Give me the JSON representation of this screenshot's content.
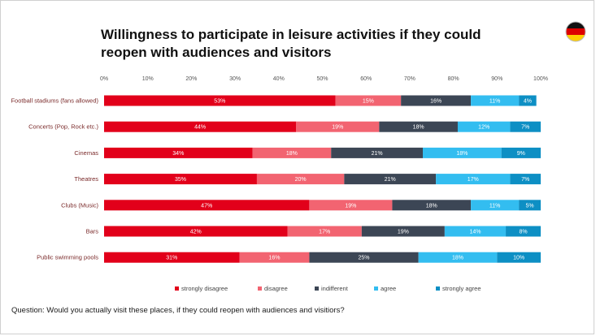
{
  "title": "Willingness to participate in leisure activities if they could reopen with audiences and visitors",
  "question": "Question: Would you actually visit these places, if they could reopen with audiences and visitiors?",
  "flag": {
    "country": "Germany",
    "icon": "germany-flag-icon",
    "colors": [
      "#111111",
      "#dd0000",
      "#ffce00"
    ]
  },
  "chart_data": {
    "type": "bar",
    "orientation": "horizontal",
    "stacked": true,
    "xlim": [
      0,
      100
    ],
    "x_ticks": [
      "0%",
      "10%",
      "20%",
      "30%",
      "40%",
      "50%",
      "60%",
      "70%",
      "80%",
      "90%",
      "100%"
    ],
    "categories": [
      "Football stadiums (fans allowed)",
      "Concerts (Pop, Rock etc.)",
      "Cinemas",
      "Theatres",
      "Clubs (Music)",
      "Bars",
      "Public swimming pools"
    ],
    "series": [
      {
        "name": "strongly disagree",
        "color": "#e2001a",
        "values": [
          53,
          44,
          34,
          35,
          47,
          42,
          31
        ]
      },
      {
        "name": "disagree",
        "color": "#f26471",
        "values": [
          15,
          19,
          18,
          20,
          19,
          17,
          16
        ]
      },
      {
        "name": "indifferent",
        "color": "#3c4655",
        "values": [
          16,
          18,
          21,
          21,
          18,
          19,
          25
        ]
      },
      {
        "name": "agree",
        "color": "#33bdf0",
        "values": [
          11,
          12,
          18,
          17,
          11,
          14,
          18
        ]
      },
      {
        "name": "strongly agree",
        "color": "#0d8fc4",
        "values": [
          4,
          7,
          9,
          7,
          5,
          8,
          10
        ]
      }
    ],
    "legend_position": "bottom",
    "grid": false
  }
}
